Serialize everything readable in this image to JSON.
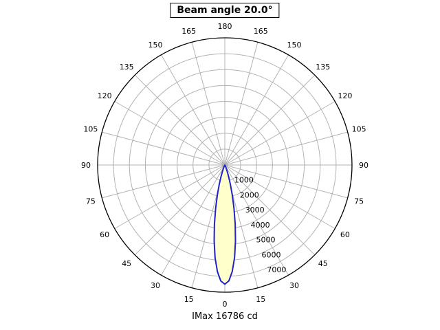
{
  "title": "Beam angle 20.0°",
  "caption": "IMax 16786 cd",
  "chart_data": {
    "type": "polar",
    "title": "Beam angle 20.0°",
    "caption": "IMax 16786 cd",
    "beam_angle_deg": 20.0,
    "imax_cd": 16786,
    "angle_ticks_deg": [
      0,
      15,
      30,
      45,
      60,
      75,
      90,
      105,
      120,
      135,
      150,
      165,
      180
    ],
    "radial_ticks": [
      1000,
      2000,
      3000,
      4000,
      5000,
      6000,
      7000
    ],
    "radial_max": 8000,
    "grid": true,
    "grid_color": "#b3b3b3",
    "axis_color": "#000000",
    "curve_color": "#2222cc",
    "fill_color": "#ffffcc",
    "series": [
      {
        "name": "luminous-intensity-lobe",
        "points": [
          [
            -30,
            12
          ],
          [
            -28,
            28
          ],
          [
            -26,
            61
          ],
          [
            -24,
            128
          ],
          [
            -22,
            250
          ],
          [
            -20,
            457
          ],
          [
            -18,
            784
          ],
          [
            -16,
            1268
          ],
          [
            -14,
            1930
          ],
          [
            -12,
            2775
          ],
          [
            -10,
            3766
          ],
          [
            -8,
            4830
          ],
          [
            -6,
            5857
          ],
          [
            -4,
            6719
          ],
          [
            -2,
            7297
          ],
          [
            0,
            7500
          ],
          [
            2,
            7297
          ],
          [
            4,
            6719
          ],
          [
            6,
            5857
          ],
          [
            8,
            4830
          ],
          [
            10,
            3766
          ],
          [
            12,
            2775
          ],
          [
            14,
            1930
          ],
          [
            16,
            1268
          ],
          [
            18,
            784
          ],
          [
            20,
            457
          ],
          [
            22,
            250
          ],
          [
            24,
            128
          ],
          [
            26,
            61
          ],
          [
            28,
            28
          ],
          [
            30,
            12
          ]
        ]
      }
    ]
  }
}
